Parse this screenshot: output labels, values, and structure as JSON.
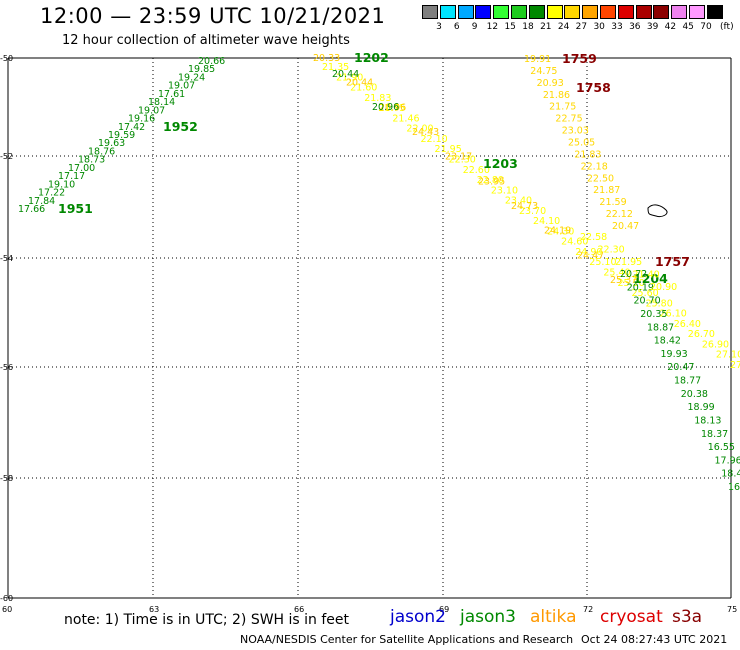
{
  "title": "12:00 — 23:59 UTC 10/21/2021",
  "subtitle": "12 hour collection of altimeter wave heights",
  "legend": {
    "unit": "(ft)",
    "labels": [
      "3",
      "6",
      "9",
      "12",
      "15",
      "18",
      "21",
      "24",
      "27",
      "30",
      "33",
      "36",
      "39",
      "42",
      "45",
      "70"
    ],
    "colors": [
      "#7f7f7f",
      "#00e5ff",
      "#00a9ff",
      "#0000ff",
      "#33ff33",
      "#1fcc1f",
      "#008800",
      "#ffff00",
      "#ffd700",
      "#ffa500",
      "#ff4500",
      "#dd0000",
      "#aa0000",
      "#8b0000",
      "#ee82ee",
      "#ff99ff",
      "#000000"
    ]
  },
  "axes": {
    "lon_ticks": [
      "60",
      "63",
      "66",
      "69",
      "72",
      "75"
    ],
    "lat_ticks": [
      "-50",
      "-52",
      "-54",
      "-56",
      "-58",
      "-60"
    ]
  },
  "tracks": [
    {
      "name": "track-1951-1952",
      "color": "#008800",
      "passes": [
        {
          "label": "1951"
        },
        {
          "label": "1952"
        }
      ],
      "values": [
        "17.66",
        "17.84",
        "17.22",
        "19.10",
        "17.17",
        "17.00",
        "18.73",
        "18.76",
        "19.63",
        "19.59",
        "17.42",
        "19.16",
        "19.07",
        "18.14",
        "17.61",
        "19.07",
        "19.24",
        "19.85",
        "20.66"
      ]
    },
    {
      "name": "track-1202-1204",
      "color": "#ffff00",
      "passes": [
        {
          "label": "1202"
        },
        {
          "label": "1203"
        },
        {
          "label": "1204"
        }
      ],
      "values": [
        "20.33",
        "20.44",
        "20.96",
        "24.43",
        "23.17",
        "23.95",
        "24.73",
        "24.19",
        "24.47",
        "25.37"
      ]
    },
    {
      "name": "track-1202-1204-green",
      "color": "#008800",
      "values": [
        "20.44",
        "20.96",
        "20.72",
        "20.19",
        "20.70",
        "20.35",
        "18.87",
        "18.42",
        "19.93",
        "20.47",
        "18.77",
        "20.38",
        "18.99",
        "18.13",
        "18.37",
        "16.55",
        "17.96",
        "18.4",
        "16"
      ]
    },
    {
      "name": "track-1757-1759",
      "color": "#ffff00",
      "passes": [
        {
          "label": "1759"
        },
        {
          "label": "1758"
        },
        {
          "label": "1757"
        }
      ],
      "values": [
        "19.91",
        "24.75",
        "20.93",
        "21.86",
        "21.75",
        "22.75",
        "23.03",
        "25.05",
        "21.83",
        "22.18",
        "22.50",
        "21.87",
        "21.59",
        "22.12",
        "20.47"
      ]
    }
  ],
  "note": "note: 1) Time is in UTC; 2) SWH is in feet",
  "satellites": [
    {
      "name": "jason2",
      "color": "#0000cc"
    },
    {
      "name": "jason3",
      "color": "#008800"
    },
    {
      "name": "altika",
      "color": "#ff9900"
    },
    {
      "name": "cryosat",
      "color": "#dd0000"
    },
    {
      "name": "s3a",
      "color": "#880000"
    }
  ],
  "footer": "NOAA/NESDIS Center for Satellite Applications and Research",
  "footer_date": "Oct 24 08:27:43 UTC 2021"
}
